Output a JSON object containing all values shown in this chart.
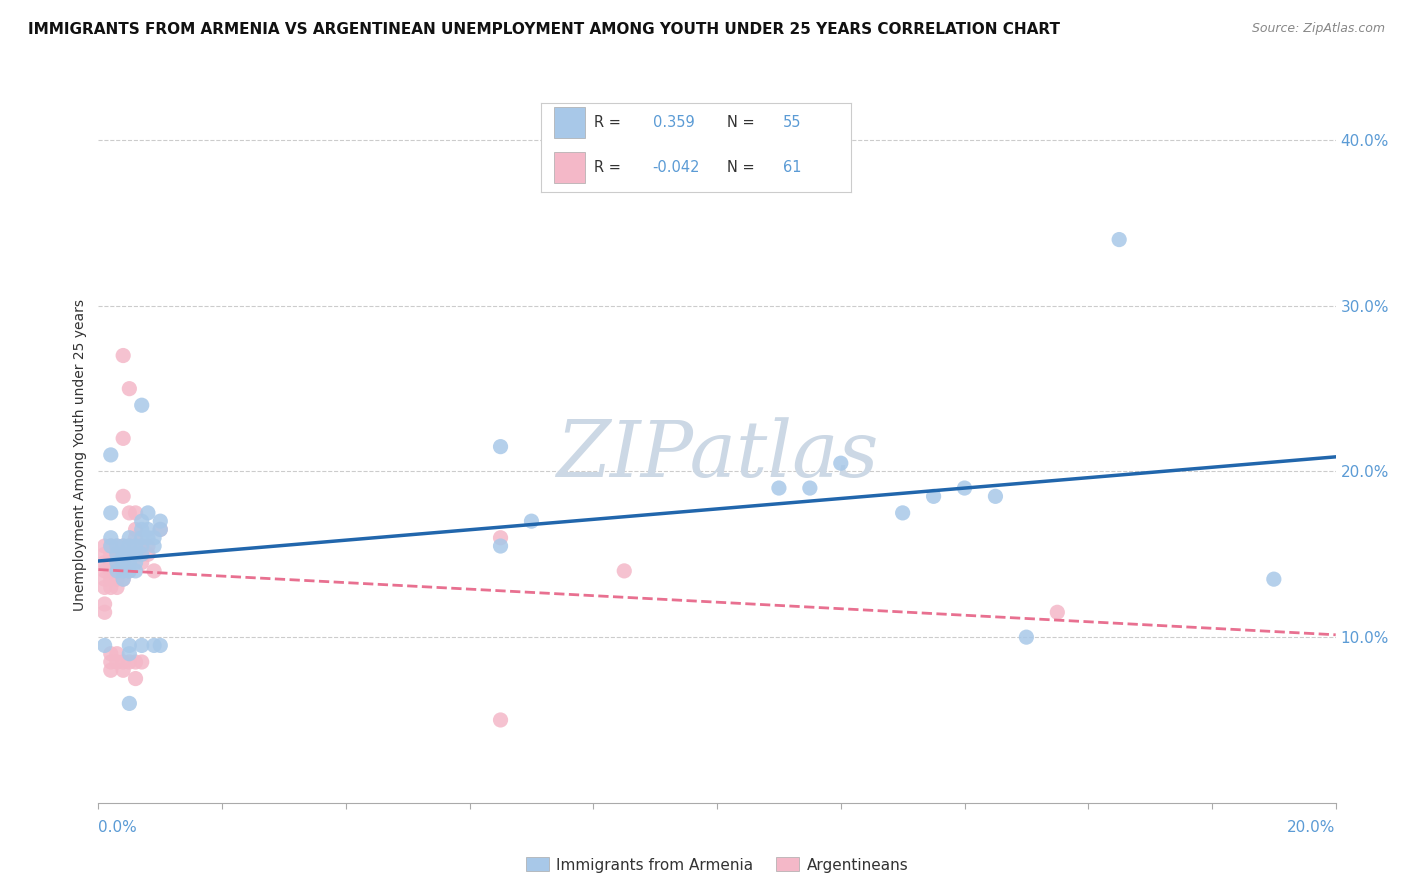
{
  "title": "IMMIGRANTS FROM ARMENIA VS ARGENTINEAN UNEMPLOYMENT AMONG YOUTH UNDER 25 YEARS CORRELATION CHART",
  "source": "Source: ZipAtlas.com",
  "ylabel": "Unemployment Among Youth under 25 years",
  "legend1_label": "Immigrants from Armenia",
  "legend2_label": "Argentineans",
  "R1": "0.359",
  "N1": "55",
  "R2": "-0.042",
  "N2": "61",
  "blue_color": "#a8c8e8",
  "pink_color": "#f4b8c8",
  "blue_line_color": "#2166ac",
  "pink_line_color": "#e87090",
  "blue_scatter": [
    [
      0.001,
      0.095
    ],
    [
      0.002,
      0.21
    ],
    [
      0.002,
      0.175
    ],
    [
      0.002,
      0.16
    ],
    [
      0.002,
      0.155
    ],
    [
      0.003,
      0.155
    ],
    [
      0.003,
      0.15
    ],
    [
      0.003,
      0.145
    ],
    [
      0.003,
      0.14
    ],
    [
      0.004,
      0.155
    ],
    [
      0.004,
      0.15
    ],
    [
      0.004,
      0.145
    ],
    [
      0.004,
      0.14
    ],
    [
      0.004,
      0.135
    ],
    [
      0.005,
      0.16
    ],
    [
      0.005,
      0.155
    ],
    [
      0.005,
      0.15
    ],
    [
      0.005,
      0.145
    ],
    [
      0.005,
      0.14
    ],
    [
      0.005,
      0.095
    ],
    [
      0.005,
      0.09
    ],
    [
      0.005,
      0.06
    ],
    [
      0.006,
      0.155
    ],
    [
      0.006,
      0.15
    ],
    [
      0.006,
      0.145
    ],
    [
      0.006,
      0.14
    ],
    [
      0.007,
      0.24
    ],
    [
      0.007,
      0.17
    ],
    [
      0.007,
      0.165
    ],
    [
      0.007,
      0.16
    ],
    [
      0.007,
      0.155
    ],
    [
      0.007,
      0.15
    ],
    [
      0.007,
      0.095
    ],
    [
      0.008,
      0.175
    ],
    [
      0.008,
      0.165
    ],
    [
      0.008,
      0.16
    ],
    [
      0.009,
      0.16
    ],
    [
      0.009,
      0.155
    ],
    [
      0.009,
      0.095
    ],
    [
      0.01,
      0.17
    ],
    [
      0.01,
      0.165
    ],
    [
      0.01,
      0.095
    ],
    [
      0.065,
      0.215
    ],
    [
      0.065,
      0.155
    ],
    [
      0.07,
      0.17
    ],
    [
      0.11,
      0.19
    ],
    [
      0.115,
      0.19
    ],
    [
      0.12,
      0.205
    ],
    [
      0.13,
      0.175
    ],
    [
      0.135,
      0.185
    ],
    [
      0.14,
      0.19
    ],
    [
      0.145,
      0.185
    ],
    [
      0.15,
      0.1
    ],
    [
      0.165,
      0.34
    ],
    [
      0.19,
      0.135
    ]
  ],
  "pink_scatter": [
    [
      0.001,
      0.155
    ],
    [
      0.001,
      0.15
    ],
    [
      0.001,
      0.145
    ],
    [
      0.001,
      0.14
    ],
    [
      0.001,
      0.135
    ],
    [
      0.001,
      0.13
    ],
    [
      0.001,
      0.12
    ],
    [
      0.001,
      0.115
    ],
    [
      0.002,
      0.155
    ],
    [
      0.002,
      0.15
    ],
    [
      0.002,
      0.145
    ],
    [
      0.002,
      0.14
    ],
    [
      0.002,
      0.135
    ],
    [
      0.002,
      0.13
    ],
    [
      0.002,
      0.09
    ],
    [
      0.002,
      0.085
    ],
    [
      0.002,
      0.08
    ],
    [
      0.003,
      0.155
    ],
    [
      0.003,
      0.15
    ],
    [
      0.003,
      0.145
    ],
    [
      0.003,
      0.14
    ],
    [
      0.003,
      0.135
    ],
    [
      0.003,
      0.13
    ],
    [
      0.003,
      0.09
    ],
    [
      0.003,
      0.085
    ],
    [
      0.004,
      0.27
    ],
    [
      0.004,
      0.22
    ],
    [
      0.004,
      0.185
    ],
    [
      0.004,
      0.155
    ],
    [
      0.004,
      0.15
    ],
    [
      0.004,
      0.145
    ],
    [
      0.004,
      0.14
    ],
    [
      0.004,
      0.135
    ],
    [
      0.004,
      0.085
    ],
    [
      0.004,
      0.08
    ],
    [
      0.005,
      0.25
    ],
    [
      0.005,
      0.175
    ],
    [
      0.005,
      0.155
    ],
    [
      0.005,
      0.15
    ],
    [
      0.005,
      0.145
    ],
    [
      0.005,
      0.14
    ],
    [
      0.005,
      0.085
    ],
    [
      0.006,
      0.175
    ],
    [
      0.006,
      0.165
    ],
    [
      0.006,
      0.16
    ],
    [
      0.006,
      0.155
    ],
    [
      0.006,
      0.15
    ],
    [
      0.006,
      0.085
    ],
    [
      0.006,
      0.075
    ],
    [
      0.007,
      0.155
    ],
    [
      0.007,
      0.15
    ],
    [
      0.007,
      0.145
    ],
    [
      0.007,
      0.085
    ],
    [
      0.008,
      0.155
    ],
    [
      0.008,
      0.15
    ],
    [
      0.009,
      0.14
    ],
    [
      0.01,
      0.165
    ],
    [
      0.065,
      0.16
    ],
    [
      0.065,
      0.05
    ],
    [
      0.085,
      0.14
    ],
    [
      0.155,
      0.115
    ]
  ],
  "xlim": [
    0,
    0.2
  ],
  "ylim": [
    0,
    0.42
  ],
  "right_yticks": [
    0.1,
    0.2,
    0.3,
    0.4
  ],
  "right_ytick_labels": [
    "10.0%",
    "20.0%",
    "30.0%",
    "40.0%"
  ],
  "grid_color": "#cccccc",
  "background_color": "#ffffff",
  "watermark": "ZIPatlas",
  "watermark_color": "#ccd8e5",
  "accent_color": "#5b9bd5",
  "text_color": "#333333"
}
